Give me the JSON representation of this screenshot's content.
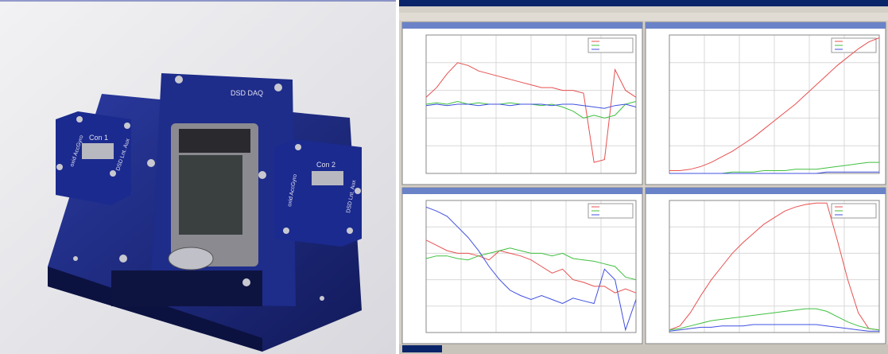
{
  "photo": {
    "labels": {
      "con1": "Con 1",
      "con2": "Con 2",
      "daq": "DSD DAQ",
      "left_side": "oxid AccGyro",
      "left_side2": "DSD Lnt. Aux",
      "right_side": "oxid AccGyro",
      "right_side2": "DSD Lnt. Aux"
    }
  },
  "screen": {
    "plots": [
      {
        "ylim": [
          0,
          100
        ],
        "series": [
          {
            "color": "#e85050",
            "values": [
              55,
              62,
              72,
              80,
              78,
              74,
              72,
              70,
              68,
              66,
              64,
              62,
              62,
              60,
              60,
              58,
              8,
              10,
              75,
              60,
              55
            ]
          },
          {
            "color": "#40c040",
            "values": [
              50,
              51,
              50,
              52,
              50,
              51,
              50,
              50,
              51,
              50,
              50,
              49,
              50,
              48,
              45,
              40,
              42,
              40,
              42,
              50,
              52
            ]
          },
          {
            "color": "#4050e0",
            "values": [
              49,
              50,
              49,
              50,
              50,
              49,
              50,
              50,
              49,
              50,
              50,
              50,
              49,
              50,
              50,
              49,
              48,
              47,
              49,
              50,
              48
            ]
          }
        ]
      },
      {
        "ylim": [
          0,
          100
        ],
        "series": [
          {
            "color": "#e85050",
            "values": [
              2,
              2,
              3,
              5,
              8,
              12,
              16,
              21,
              26,
              32,
              38,
              44,
              50,
              57,
              64,
              71,
              78,
              84,
              90,
              95,
              98
            ]
          },
          {
            "color": "#40c040",
            "values": [
              0,
              0,
              0,
              0,
              0,
              0,
              1,
              1,
              1,
              2,
              2,
              2,
              3,
              3,
              3,
              4,
              5,
              6,
              7,
              8,
              8
            ]
          },
          {
            "color": "#4050e0",
            "values": [
              0,
              0,
              0,
              0,
              0,
              0,
              0,
              0,
              0,
              0,
              0,
              0,
              0,
              0,
              0,
              1,
              1,
              1,
              1,
              1,
              1
            ]
          }
        ]
      },
      {
        "ylim": [
          0,
          100
        ],
        "series": [
          {
            "color": "#e85050",
            "values": [
              70,
              66,
              62,
              60,
              60,
              58,
              55,
              62,
              60,
              58,
              55,
              50,
              45,
              48,
              40,
              38,
              35,
              35,
              30,
              33,
              30
            ]
          },
          {
            "color": "#40c040",
            "values": [
              56,
              58,
              58,
              56,
              55,
              58,
              60,
              62,
              64,
              62,
              60,
              60,
              58,
              60,
              56,
              55,
              54,
              52,
              50,
              42,
              40
            ]
          },
          {
            "color": "#4050e0",
            "values": [
              95,
              92,
              88,
              80,
              72,
              62,
              50,
              40,
              32,
              28,
              25,
              28,
              25,
              22,
              26,
              24,
              22,
              48,
              40,
              2,
              25
            ]
          }
        ]
      },
      {
        "ylim": [
          0,
          100
        ],
        "series": [
          {
            "color": "#e85050",
            "values": [
              2,
              5,
              15,
              28,
              40,
              50,
              60,
              68,
              75,
              82,
              87,
              92,
              95,
              97,
              98,
              98,
              70,
              40,
              15,
              3,
              2
            ]
          },
          {
            "color": "#40c040",
            "values": [
              2,
              3,
              5,
              7,
              9,
              10,
              11,
              12,
              13,
              14,
              15,
              16,
              17,
              18,
              18,
              16,
              12,
              8,
              5,
              3,
              2
            ]
          },
          {
            "color": "#4050e0",
            "values": [
              1,
              2,
              3,
              4,
              4,
              5,
              5,
              5,
              6,
              6,
              6,
              6,
              6,
              6,
              6,
              5,
              4,
              3,
              2,
              1,
              1
            ]
          }
        ]
      }
    ]
  }
}
